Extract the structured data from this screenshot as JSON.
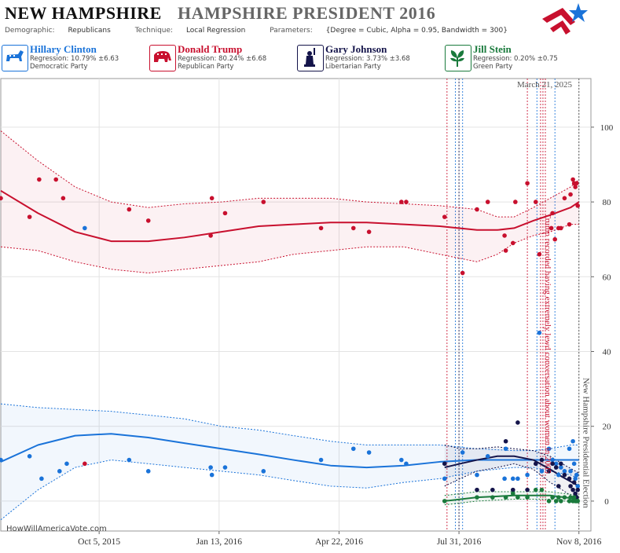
{
  "header": {
    "state": "NEW HAMPSHIRE",
    "race": "HAMPSHIRE PRESIDENT 2016",
    "demographic_label": "Demographic:",
    "demographic": "Republicans",
    "technique_label": "Technique:",
    "technique": "Local Regression",
    "parameters_label": "Parameters:",
    "parameters": "{Degree = Cubic, Alpha = 0.95, Bandwidth = 300}"
  },
  "candidates": [
    {
      "name": "Hillary Clinton",
      "regression": "Regression: 10.79% ±6.63",
      "party": "Democratic Party",
      "color": "#1a73d9",
      "icon": "donkey-icon"
    },
    {
      "name": "Donald Trump",
      "regression": "Regression: 80.24% ±6.68",
      "party": "Republican Party",
      "color": "#c8102e",
      "icon": "elephant-icon"
    },
    {
      "name": "Gary Johnson",
      "regression": "Regression: 3.73% ±3.68",
      "party": "Libertarian Party",
      "color": "#14144a",
      "icon": "statue-of-liberty-icon"
    },
    {
      "name": "Jill Stein",
      "regression": "Regression: 0.20% ±0.75",
      "party": "Green Party",
      "color": "#1a7a3c",
      "icon": "leaf-icon"
    }
  ],
  "date_label": "March 21, 2025",
  "watermark": "HowWillAmericaVote.com",
  "chart_data": {
    "type": "scatter",
    "x_axis": {
      "type": "date",
      "range": [
        "2015-07-15",
        "2016-11-18"
      ],
      "ticks": [
        "Oct 5, 2015",
        "Jan 13, 2016",
        "Apr 22, 2016",
        "Jul 31, 2016",
        "Nov 8, 2016"
      ]
    },
    "y_axis": {
      "range": [
        -8,
        113
      ],
      "ticks": [
        0,
        20,
        40,
        60,
        80,
        100
      ],
      "position": "right"
    },
    "grid": true,
    "annotations": [
      {
        "date": "2016-10-07",
        "text": "Trump recorded having extremely lewd conversation about women in 2005",
        "color": "#c8102e"
      },
      {
        "date": "2016-11-08",
        "text": "New Hampshire Presidential Election",
        "color": "#444444"
      }
    ],
    "vertical_lines": [
      {
        "date": "2016-07-21",
        "color": "#c8102e"
      },
      {
        "date": "2016-07-28",
        "color": "#1a73d9"
      },
      {
        "date": "2016-07-31",
        "color": "#14144a"
      },
      {
        "date": "2016-08-03",
        "color": "#1a73d9"
      },
      {
        "date": "2016-09-26",
        "color": "#c8102e"
      },
      {
        "date": "2016-10-04",
        "color": "#1a73d9"
      },
      {
        "date": "2016-10-07",
        "color": "#c8102e"
      },
      {
        "date": "2016-10-09",
        "color": "#c8102e"
      },
      {
        "date": "2016-10-11",
        "color": "#c8102e"
      },
      {
        "date": "2016-10-19",
        "color": "#1a73d9"
      },
      {
        "date": "2016-11-08",
        "color": "#444444"
      }
    ],
    "series": [
      {
        "name": "Donald Trump",
        "color": "#c8102e",
        "start": "2015-07-15",
        "points": [
          [
            "2015-07-15",
            81
          ],
          [
            "2015-08-08",
            76
          ],
          [
            "2015-08-16",
            86
          ],
          [
            "2015-08-30",
            86
          ],
          [
            "2015-09-05",
            81
          ],
          [
            "2015-09-23",
            10
          ],
          [
            "2015-10-30",
            78
          ],
          [
            "2015-11-15",
            75
          ],
          [
            "2016-01-07",
            81
          ],
          [
            "2016-01-06",
            71
          ],
          [
            "2016-01-18",
            77
          ],
          [
            "2016-02-19",
            80
          ],
          [
            "2016-04-07",
            73
          ],
          [
            "2016-05-04",
            73
          ],
          [
            "2016-05-17",
            72
          ],
          [
            "2016-06-13",
            80
          ],
          [
            "2016-06-17",
            80
          ],
          [
            "2016-07-19",
            76
          ],
          [
            "2016-08-03",
            61
          ],
          [
            "2016-08-15",
            78
          ],
          [
            "2016-08-24",
            80
          ],
          [
            "2016-09-07",
            71
          ],
          [
            "2016-09-08",
            67
          ],
          [
            "2016-09-14",
            69
          ],
          [
            "2016-09-16",
            80
          ],
          [
            "2016-09-26",
            85
          ],
          [
            "2016-10-03",
            80
          ],
          [
            "2016-10-06",
            66
          ],
          [
            "2016-10-16",
            73
          ],
          [
            "2016-10-17",
            77
          ],
          [
            "2016-10-19",
            70
          ],
          [
            "2016-10-22",
            73
          ],
          [
            "2016-10-24",
            73
          ],
          [
            "2016-10-27",
            81
          ],
          [
            "2016-10-31",
            74
          ],
          [
            "2016-11-01",
            82
          ],
          [
            "2016-11-03",
            86
          ],
          [
            "2016-11-04",
            85
          ],
          [
            "2016-11-05",
            84
          ],
          [
            "2016-11-06",
            85
          ],
          [
            "2016-11-07",
            79
          ]
        ],
        "trend": [
          [
            "2015-07-15",
            83,
            99,
            68
          ],
          [
            "2015-08-15",
            77,
            91,
            67
          ],
          [
            "2015-09-15",
            72,
            84,
            64
          ],
          [
            "2015-10-15",
            69.5,
            80,
            62
          ],
          [
            "2015-11-15",
            69.5,
            78.5,
            61
          ],
          [
            "2015-12-15",
            70.5,
            79.5,
            62
          ],
          [
            "2016-01-15",
            72,
            80,
            63
          ],
          [
            "2016-02-15",
            73.5,
            81,
            64
          ],
          [
            "2016-03-15",
            74,
            81,
            66
          ],
          [
            "2016-04-15",
            74.5,
            81,
            67
          ],
          [
            "2016-05-15",
            74.5,
            80,
            68
          ],
          [
            "2016-06-15",
            74,
            79.5,
            68
          ],
          [
            "2016-07-15",
            73.5,
            79,
            66
          ],
          [
            "2016-08-15",
            72.5,
            78,
            64
          ],
          [
            "2016-09-01",
            72.5,
            76,
            66
          ],
          [
            "2016-09-15",
            73,
            76,
            69
          ],
          [
            "2016-10-01",
            75,
            78.5,
            71
          ],
          [
            "2016-10-15",
            76.5,
            81,
            72
          ],
          [
            "2016-11-01",
            78.5,
            84,
            74
          ],
          [
            "2016-11-08",
            80,
            86,
            74
          ]
        ]
      },
      {
        "name": "Hillary Clinton",
        "color": "#1a73d9",
        "start": "2015-07-15",
        "points": [
          [
            "2015-07-15",
            11
          ],
          [
            "2015-08-08",
            12
          ],
          [
            "2015-08-18",
            6
          ],
          [
            "2015-09-02",
            8
          ],
          [
            "2015-09-08",
            10
          ],
          [
            "2015-09-23",
            73
          ],
          [
            "2015-10-30",
            11
          ],
          [
            "2015-11-15",
            8
          ],
          [
            "2016-01-06",
            9
          ],
          [
            "2016-01-07",
            7
          ],
          [
            "2016-01-18",
            9
          ],
          [
            "2016-02-19",
            8
          ],
          [
            "2016-04-07",
            11
          ],
          [
            "2016-05-04",
            14
          ],
          [
            "2016-05-17",
            13
          ],
          [
            "2016-06-13",
            11
          ],
          [
            "2016-06-17",
            10
          ],
          [
            "2016-07-19",
            6
          ],
          [
            "2016-08-03",
            13
          ],
          [
            "2016-08-15",
            7
          ],
          [
            "2016-08-24",
            12
          ],
          [
            "2016-09-07",
            6
          ],
          [
            "2016-09-08",
            14
          ],
          [
            "2016-09-14",
            6
          ],
          [
            "2016-09-18",
            6
          ],
          [
            "2016-09-26",
            7
          ],
          [
            "2016-10-06",
            45
          ],
          [
            "2016-10-08",
            8
          ],
          [
            "2016-10-14",
            14
          ],
          [
            "2016-10-17",
            11
          ],
          [
            "2016-10-20",
            10
          ],
          [
            "2016-10-22",
            7
          ],
          [
            "2016-10-24",
            9
          ],
          [
            "2016-10-27",
            8
          ],
          [
            "2016-10-31",
            14
          ],
          [
            "2016-11-01",
            8
          ],
          [
            "2016-11-03",
            16
          ],
          [
            "2016-11-04",
            10
          ],
          [
            "2016-11-05",
            6
          ],
          [
            "2016-11-06",
            7
          ],
          [
            "2016-11-07",
            4
          ]
        ],
        "trend": [
          [
            "2015-07-15",
            10.5,
            26,
            -5
          ],
          [
            "2015-08-15",
            15,
            25,
            3
          ],
          [
            "2015-09-15",
            17.5,
            24.5,
            9
          ],
          [
            "2015-10-15",
            18,
            24,
            11
          ],
          [
            "2015-11-15",
            17,
            23,
            10
          ],
          [
            "2015-12-15",
            15.5,
            22,
            9
          ],
          [
            "2016-01-15",
            14,
            20,
            8
          ],
          [
            "2016-02-15",
            12.5,
            19,
            7
          ],
          [
            "2016-03-15",
            11,
            17.5,
            5.5
          ],
          [
            "2016-04-15",
            9.5,
            16,
            4
          ],
          [
            "2016-05-15",
            9,
            15,
            3.5
          ],
          [
            "2016-06-15",
            9.5,
            15,
            5
          ],
          [
            "2016-07-15",
            10.5,
            15,
            6
          ],
          [
            "2016-08-15",
            11,
            14,
            8
          ],
          [
            "2016-09-15",
            11,
            13.5,
            9
          ],
          [
            "2016-10-01",
            11,
            13.5,
            9
          ],
          [
            "2016-10-15",
            11,
            14,
            8
          ],
          [
            "2016-11-01",
            11,
            15,
            7
          ],
          [
            "2016-11-08",
            11,
            15,
            6
          ]
        ]
      },
      {
        "name": "Gary Johnson",
        "color": "#14144a",
        "start": "2016-07-19",
        "points": [
          [
            "2016-07-19",
            10
          ],
          [
            "2016-08-15",
            3
          ],
          [
            "2016-08-28",
            3
          ],
          [
            "2016-09-08",
            16
          ],
          [
            "2016-09-14",
            3
          ],
          [
            "2016-09-18",
            21
          ],
          [
            "2016-09-26",
            3
          ],
          [
            "2016-10-03",
            10
          ],
          [
            "2016-10-08",
            11
          ],
          [
            "2016-10-14",
            8
          ],
          [
            "2016-10-17",
            10
          ],
          [
            "2016-10-20",
            9
          ],
          [
            "2016-10-22",
            4
          ],
          [
            "2016-10-24",
            10
          ],
          [
            "2016-10-27",
            7
          ],
          [
            "2016-10-31",
            6
          ],
          [
            "2016-11-01",
            4
          ],
          [
            "2016-11-03",
            3
          ],
          [
            "2016-11-04",
            5
          ],
          [
            "2016-11-05",
            2
          ],
          [
            "2016-11-06",
            1
          ],
          [
            "2016-11-07",
            3
          ]
        ],
        "trend": [
          [
            "2016-07-19",
            9,
            15,
            4
          ],
          [
            "2016-08-01",
            10,
            14,
            6
          ],
          [
            "2016-08-15",
            11,
            14,
            8
          ],
          [
            "2016-09-01",
            12,
            14.5,
            9
          ],
          [
            "2016-09-15",
            12,
            14,
            10
          ],
          [
            "2016-10-01",
            11,
            13.5,
            8.5
          ],
          [
            "2016-10-15",
            8.5,
            12,
            5
          ],
          [
            "2016-10-25",
            6.5,
            10,
            3
          ],
          [
            "2016-11-08",
            4,
            7.5,
            0
          ]
        ]
      },
      {
        "name": "Jill Stein",
        "color": "#1a7a3c",
        "start": "2016-07-19",
        "points": [
          [
            "2016-07-19",
            0
          ],
          [
            "2016-08-15",
            1
          ],
          [
            "2016-08-28",
            1
          ],
          [
            "2016-09-08",
            1
          ],
          [
            "2016-09-14",
            2
          ],
          [
            "2016-09-18",
            1
          ],
          [
            "2016-09-26",
            1
          ],
          [
            "2016-10-03",
            3
          ],
          [
            "2016-10-08",
            3
          ],
          [
            "2016-10-14",
            0
          ],
          [
            "2016-10-17",
            1
          ],
          [
            "2016-10-20",
            0
          ],
          [
            "2016-10-22",
            1
          ],
          [
            "2016-10-24",
            0
          ],
          [
            "2016-10-27",
            1
          ],
          [
            "2016-10-31",
            0
          ],
          [
            "2016-11-01",
            1
          ],
          [
            "2016-11-03",
            0
          ],
          [
            "2016-11-04",
            1
          ],
          [
            "2016-11-05",
            0
          ],
          [
            "2016-11-06",
            0
          ],
          [
            "2016-11-07",
            0
          ]
        ],
        "trend": [
          [
            "2016-07-19",
            0,
            1.5,
            -1
          ],
          [
            "2016-08-15",
            1,
            2.5,
            0
          ],
          [
            "2016-09-15",
            1.5,
            2.5,
            0.5
          ],
          [
            "2016-10-15",
            1.5,
            2.5,
            0.5
          ],
          [
            "2016-11-08",
            0.5,
            1.5,
            -0.5
          ]
        ]
      }
    ]
  }
}
